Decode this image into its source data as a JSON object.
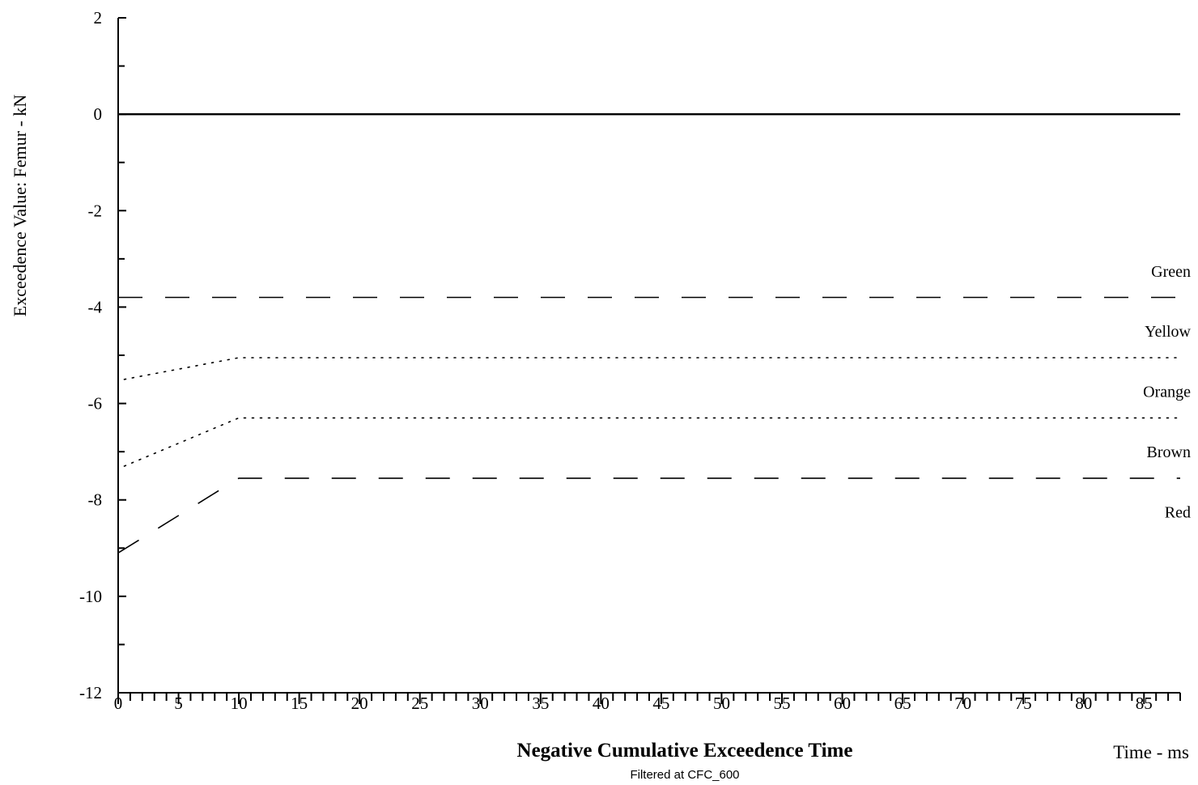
{
  "chart_data": {
    "type": "line",
    "title": "",
    "xlabel": "Negative Cumulative Exceedence Time",
    "x_unit_label": "Time - ms",
    "ylabel": "Exceedence Value: Femur - kN",
    "caption": "Filtered at CFC_600",
    "xlim": [
      0,
      88
    ],
    "ylim": [
      -12,
      2
    ],
    "x_major_ticks": [
      0,
      5,
      10,
      15,
      20,
      25,
      30,
      35,
      40,
      45,
      50,
      55,
      60,
      65,
      70,
      75,
      80,
      85
    ],
    "x_minor_step": 1,
    "y_major_ticks": [
      2,
      0,
      -2,
      -4,
      -6,
      -8,
      -10,
      -12
    ],
    "y_minor_step": 1,
    "grid": false,
    "legend": "none",
    "series": [
      {
        "style": "solid",
        "points": [
          [
            0,
            0
          ],
          [
            88,
            0
          ]
        ]
      },
      {
        "style": "dashed",
        "points": [
          [
            0,
            -3.8
          ],
          [
            88,
            -3.8
          ]
        ]
      },
      {
        "style": "dotted",
        "points": [
          [
            0.5,
            -5.5
          ],
          [
            10,
            -5.05
          ],
          [
            88,
            -5.05
          ]
        ]
      },
      {
        "style": "dotted",
        "points": [
          [
            0.5,
            -7.3
          ],
          [
            10,
            -6.3
          ],
          [
            88,
            -6.3
          ]
        ]
      },
      {
        "style": "dashed",
        "points": [
          [
            0,
            -9.1
          ],
          [
            10,
            -7.55
          ],
          [
            88,
            -7.55
          ]
        ]
      }
    ],
    "band_labels": [
      {
        "text": "Green",
        "y": -3.25
      },
      {
        "text": "Yellow",
        "y": -4.5
      },
      {
        "text": "Orange",
        "y": -5.75
      },
      {
        "text": "Brown",
        "y": -7.0
      },
      {
        "text": "Red",
        "y": -8.25
      }
    ]
  }
}
